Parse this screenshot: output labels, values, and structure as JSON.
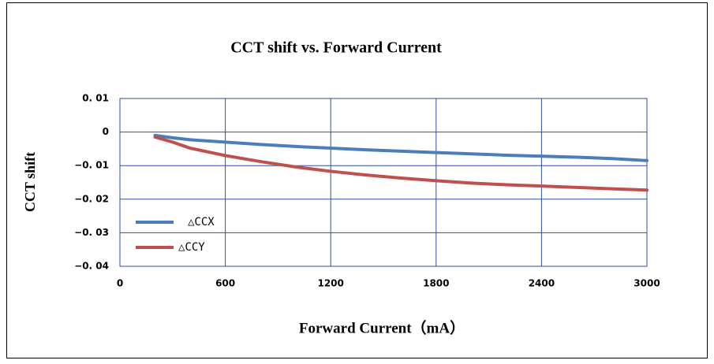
{
  "chart_data": {
    "type": "line",
    "title": "CCT shift vs. Forward Current",
    "x_label": "Forward Current（mA）",
    "y_label": "CCT shift",
    "x": [
      200,
      300,
      400,
      600,
      800,
      1000,
      1200,
      1400,
      1600,
      1800,
      2000,
      2200,
      2400,
      2600,
      2800,
      3000
    ],
    "series": [
      {
        "name": "△CCX",
        "color": "#4a7ebb",
        "values": [
          -0.001,
          -0.0017,
          -0.0023,
          -0.003,
          -0.0037,
          -0.0043,
          -0.0048,
          -0.0053,
          -0.0057,
          -0.0061,
          -0.0065,
          -0.0069,
          -0.0072,
          -0.0075,
          -0.0079,
          -0.0085
        ]
      },
      {
        "name": "△CCY",
        "color": "#c0504d",
        "values": [
          -0.0015,
          -0.003,
          -0.0048,
          -0.007,
          -0.0088,
          -0.0104,
          -0.0117,
          -0.0128,
          -0.0137,
          -0.0145,
          -0.0152,
          -0.0157,
          -0.0161,
          -0.0165,
          -0.0169,
          -0.0173
        ]
      }
    ],
    "xlim": [
      0,
      3000
    ],
    "xticks": [
      0,
      600,
      1200,
      1800,
      2400,
      3000
    ],
    "ylim": [
      -0.04,
      0.01
    ],
    "yticks": [
      {
        "value": 0.01,
        "label": "0. 01"
      },
      0,
      {
        "value": -0.01,
        "label": "−0. 01"
      },
      {
        "value": -0.02,
        "label": "−0. 02"
      },
      {
        "value": -0.03,
        "label": "−0. 03"
      },
      {
        "value": -0.04,
        "label": "−0. 04"
      }
    ],
    "grid": true,
    "legend": "lower-left"
  }
}
